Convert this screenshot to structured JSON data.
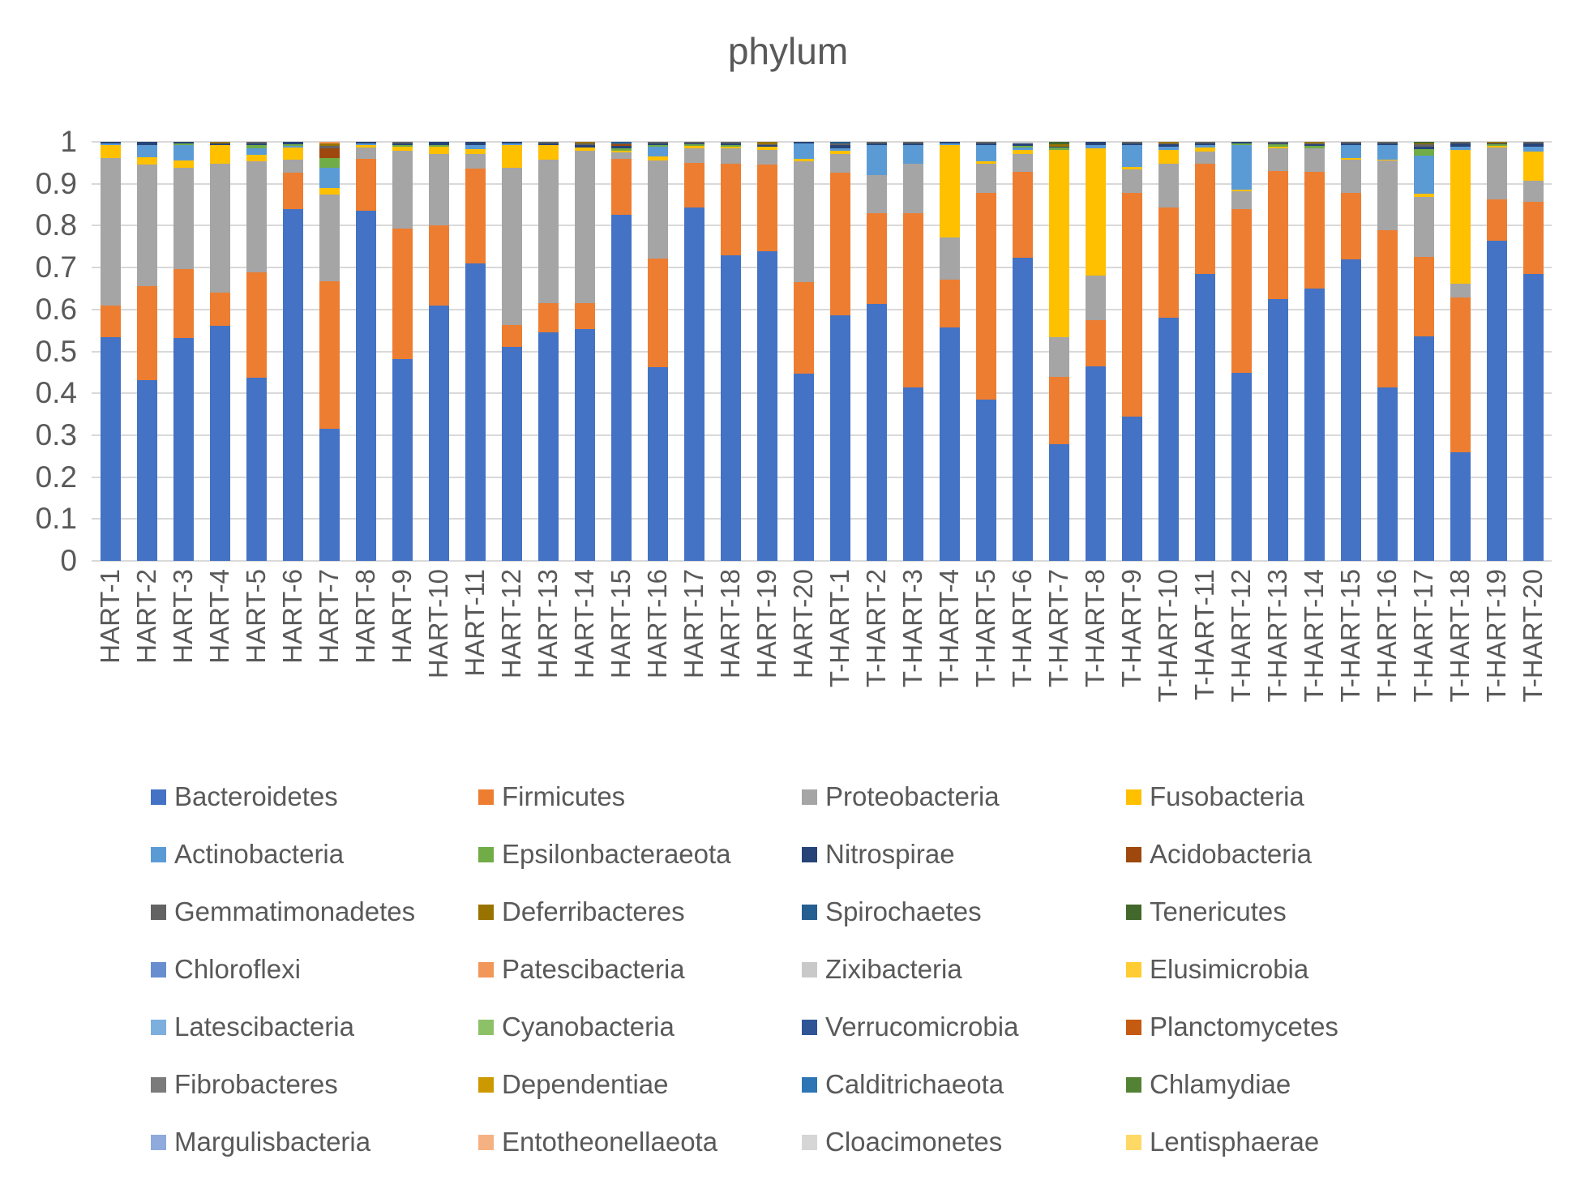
{
  "title": "phylum",
  "y_axis": {
    "ticks": [
      "0",
      "0.1",
      "0.2",
      "0.3",
      "0.4",
      "0.5",
      "0.6",
      "0.7",
      "0.8",
      "0.9",
      "1"
    ],
    "min": 0,
    "max": 1
  },
  "phyla": [
    {
      "name": "Bacteroidetes",
      "color": "#4472C4"
    },
    {
      "name": "Firmicutes",
      "color": "#ED7D31"
    },
    {
      "name": "Proteobacteria",
      "color": "#A5A5A5"
    },
    {
      "name": "Fusobacteria",
      "color": "#FFC000"
    },
    {
      "name": "Actinobacteria",
      "color": "#5B9BD5"
    },
    {
      "name": "Epsilonbacteraeota",
      "color": "#70AD47"
    },
    {
      "name": "Nitrospirae",
      "color": "#264478"
    },
    {
      "name": "Acidobacteria",
      "color": "#9E480E"
    },
    {
      "name": "Gemmatimonadetes",
      "color": "#636363"
    },
    {
      "name": "Deferribacteres",
      "color": "#997300"
    },
    {
      "name": "Spirochaetes",
      "color": "#255E91"
    },
    {
      "name": "Tenericutes",
      "color": "#43682B"
    },
    {
      "name": "Chloroflexi",
      "color": "#698ED0"
    },
    {
      "name": "Patescibacteria",
      "color": "#F1975A"
    },
    {
      "name": "Zixibacteria",
      "color": "#C9C9C9"
    },
    {
      "name": "Elusimicrobia",
      "color": "#FFCD33"
    },
    {
      "name": "Latescibacteria",
      "color": "#7CAFDD"
    },
    {
      "name": "Cyanobacteria",
      "color": "#8CC168"
    },
    {
      "name": "Verrucomicrobia",
      "color": "#2F5597"
    },
    {
      "name": "Planctomycetes",
      "color": "#C55A11"
    },
    {
      "name": "Fibrobacteres",
      "color": "#7B7B7B"
    },
    {
      "name": "Dependentiae",
      "color": "#CC9A00"
    },
    {
      "name": "Calditrichaeota",
      "color": "#2E75B6"
    },
    {
      "name": "Chlamydiae",
      "color": "#548235"
    },
    {
      "name": "Margulisbacteria",
      "color": "#8FAADC"
    },
    {
      "name": "Entotheonellaeota",
      "color": "#F6B183"
    },
    {
      "name": "Cloacimonetes",
      "color": "#D6D6D6"
    },
    {
      "name": "Lentisphaerae",
      "color": "#FFD966"
    }
  ],
  "chart_data": {
    "type": "bar",
    "stacked": true,
    "title": "phylum",
    "xlabel": "",
    "ylabel": "",
    "ylim": [
      0,
      1
    ],
    "gridlines": true,
    "legend_position": "bottom",
    "categories": [
      "HART-1",
      "HART-2",
      "HART-3",
      "HART-4",
      "HART-5",
      "HART-6",
      "HART-7",
      "HART-8",
      "HART-9",
      "HART-10",
      "HART-11",
      "HART-12",
      "HART-13",
      "HART-14",
      "HART-15",
      "HART-16",
      "HART-17",
      "HART-18",
      "HART-19",
      "HART-20",
      "T-HART-1",
      "T-HART-2",
      "T-HART-3",
      "T-HART-4",
      "T-HART-5",
      "T-HART-6",
      "T-HART-7",
      "T-HART-8",
      "T-HART-9",
      "T-HART-10",
      "T-HART-11",
      "T-HART-12",
      "T-HART-13",
      "T-HART-14",
      "T-HART-15",
      "T-HART-16",
      "T-HART-17",
      "T-HART-18",
      "T-HART-19",
      "T-HART-20"
    ],
    "bars": [
      {
        "label": "HART-1",
        "segments": {
          "Bacteroidetes": 0.533,
          "Firmicutes": 0.077,
          "Proteobacteria": 0.351,
          "Fusobacteria": 0.031,
          "Actinobacteria": 0.005,
          "Nitrospirae": 0.003
        }
      },
      {
        "label": "HART-2",
        "segments": {
          "Bacteroidetes": 0.431,
          "Firmicutes": 0.224,
          "Proteobacteria": 0.29,
          "Fusobacteria": 0.019,
          "Actinobacteria": 0.029,
          "Nitrospirae": 0.007
        }
      },
      {
        "label": "HART-3",
        "segments": {
          "Bacteroidetes": 0.532,
          "Firmicutes": 0.164,
          "Proteobacteria": 0.243,
          "Fusobacteria": 0.016,
          "Actinobacteria": 0.038,
          "Epsilonbacteraeota": 0.004,
          "Nitrospirae": 0.003
        }
      },
      {
        "label": "HART-4",
        "segments": {
          "Bacteroidetes": 0.56,
          "Firmicutes": 0.081,
          "Proteobacteria": 0.307,
          "Fusobacteria": 0.045,
          "Deferribacteres": 0.004,
          "Nitrospirae": 0.003
        }
      },
      {
        "label": "HART-5",
        "segments": {
          "Bacteroidetes": 0.437,
          "Firmicutes": 0.252,
          "Proteobacteria": 0.264,
          "Fusobacteria": 0.016,
          "Actinobacteria": 0.016,
          "Epsilonbacteraeota": 0.007,
          "Nitrospirae": 0.005,
          "Gemmatimonadetes": 0.003
        }
      },
      {
        "label": "HART-6",
        "segments": {
          "Bacteroidetes": 0.84,
          "Firmicutes": 0.086,
          "Proteobacteria": 0.031,
          "Fusobacteria": 0.03,
          "Actinobacteria": 0.004,
          "Epsilonbacteraeota": 0.004,
          "Nitrospirae": 0.005
        }
      },
      {
        "label": "HART-7",
        "segments": {
          "Bacteroidetes": 0.315,
          "Firmicutes": 0.353,
          "Proteobacteria": 0.206,
          "Fusobacteria": 0.016,
          "Actinobacteria": 0.048,
          "Epsilonbacteraeota": 0.023,
          "Acidobacteria": 0.024,
          "Gemmatimonadetes": 0.006,
          "Deferribacteres": 0.005,
          "Patescibacteria": 0.004
        }
      },
      {
        "label": "HART-8",
        "segments": {
          "Bacteroidetes": 0.835,
          "Firmicutes": 0.124,
          "Proteobacteria": 0.028,
          "Fusobacteria": 0.006,
          "Actinobacteria": 0.004,
          "Nitrospirae": 0.003
        }
      },
      {
        "label": "HART-9",
        "segments": {
          "Bacteroidetes": 0.481,
          "Firmicutes": 0.313,
          "Proteobacteria": 0.184,
          "Fusobacteria": 0.01,
          "Epsilonbacteraeota": 0.005,
          "Nitrospirae": 0.004,
          "Gemmatimonadetes": 0.003
        }
      },
      {
        "label": "HART-10",
        "segments": {
          "Bacteroidetes": 0.61,
          "Firmicutes": 0.191,
          "Proteobacteria": 0.17,
          "Fusobacteria": 0.018,
          "Epsilonbacteraeota": 0.004,
          "Nitrospirae": 0.007
        }
      },
      {
        "label": "HART-11",
        "segments": {
          "Bacteroidetes": 0.71,
          "Firmicutes": 0.226,
          "Proteobacteria": 0.036,
          "Fusobacteria": 0.01,
          "Actinobacteria": 0.011,
          "Nitrospirae": 0.007
        }
      },
      {
        "label": "HART-12",
        "segments": {
          "Bacteroidetes": 0.51,
          "Firmicutes": 0.052,
          "Proteobacteria": 0.377,
          "Fusobacteria": 0.053,
          "Actinobacteria": 0.004,
          "Nitrospirae": 0.004
        }
      },
      {
        "label": "HART-13",
        "segments": {
          "Bacteroidetes": 0.545,
          "Firmicutes": 0.071,
          "Proteobacteria": 0.341,
          "Fusobacteria": 0.035,
          "Nitrospirae": 0.004,
          "Gemmatimonadetes": 0.004
        }
      },
      {
        "label": "HART-14",
        "segments": {
          "Bacteroidetes": 0.553,
          "Firmicutes": 0.063,
          "Proteobacteria": 0.363,
          "Fusobacteria": 0.008,
          "Nitrospirae": 0.006,
          "Gemmatimonadetes": 0.004,
          "Deferribacteres": 0.003
        }
      },
      {
        "label": "HART-15",
        "segments": {
          "Bacteroidetes": 0.826,
          "Firmicutes": 0.134,
          "Proteobacteria": 0.015,
          "Fusobacteria": 0.004,
          "Epsilonbacteraeota": 0.006,
          "Nitrospirae": 0.005,
          "Acidobacteria": 0.004,
          "Gemmatimonadetes": 0.003,
          "Spirochaetes": 0.003
        }
      },
      {
        "label": "HART-16",
        "segments": {
          "Bacteroidetes": 0.463,
          "Firmicutes": 0.258,
          "Proteobacteria": 0.234,
          "Fusobacteria": 0.01,
          "Actinobacteria": 0.024,
          "Epsilonbacteraeota": 0.004,
          "Nitrospirae": 0.004,
          "Gemmatimonadetes": 0.003
        }
      },
      {
        "label": "HART-17",
        "segments": {
          "Bacteroidetes": 0.843,
          "Firmicutes": 0.107,
          "Proteobacteria": 0.035,
          "Fusobacteria": 0.005,
          "Epsilonbacteraeota": 0.004,
          "Nitrospirae": 0.003,
          "Gemmatimonadetes": 0.003
        }
      },
      {
        "label": "HART-18",
        "segments": {
          "Bacteroidetes": 0.729,
          "Firmicutes": 0.219,
          "Proteobacteria": 0.037,
          "Fusobacteria": 0.004,
          "Epsilonbacteraeota": 0.004,
          "Nitrospirae": 0.004,
          "Gemmatimonadetes": 0.003
        }
      },
      {
        "label": "HART-19",
        "segments": {
          "Bacteroidetes": 0.738,
          "Firmicutes": 0.207,
          "Proteobacteria": 0.036,
          "Fusobacteria": 0.008,
          "Deferribacteres": 0.005,
          "Nitrospirae": 0.003,
          "Gemmatimonadetes": 0.003
        }
      },
      {
        "label": "HART-20",
        "segments": {
          "Bacteroidetes": 0.446,
          "Firmicutes": 0.219,
          "Proteobacteria": 0.288,
          "Fusobacteria": 0.006,
          "Actinobacteria": 0.037,
          "Nitrospirae": 0.004
        }
      },
      {
        "label": "T-HART-1",
        "segments": {
          "Bacteroidetes": 0.587,
          "Firmicutes": 0.339,
          "Proteobacteria": 0.046,
          "Fusobacteria": 0.006,
          "Actinobacteria": 0.007,
          "Nitrospirae": 0.008,
          "Gemmatimonadetes": 0.004,
          "Spirochaetes": 0.003
        }
      },
      {
        "label": "T-HART-2",
        "segments": {
          "Bacteroidetes": 0.613,
          "Firmicutes": 0.216,
          "Proteobacteria": 0.092,
          "Actinobacteria": 0.071,
          "Nitrospirae": 0.005,
          "Gemmatimonadetes": 0.003
        }
      },
      {
        "label": "T-HART-3",
        "segments": {
          "Bacteroidetes": 0.413,
          "Firmicutes": 0.416,
          "Proteobacteria": 0.119,
          "Actinobacteria": 0.045,
          "Nitrospirae": 0.004,
          "Gemmatimonadetes": 0.003
        }
      },
      {
        "label": "T-HART-4",
        "segments": {
          "Bacteroidetes": 0.558,
          "Firmicutes": 0.113,
          "Proteobacteria": 0.1,
          "Fusobacteria": 0.221,
          "Actinobacteria": 0.004,
          "Nitrospirae": 0.004
        }
      },
      {
        "label": "T-HART-5",
        "segments": {
          "Bacteroidetes": 0.384,
          "Firmicutes": 0.494,
          "Proteobacteria": 0.07,
          "Fusobacteria": 0.005,
          "Actinobacteria": 0.039,
          "Nitrospirae": 0.005,
          "Gemmatimonadetes": 0.003
        }
      },
      {
        "label": "T-HART-6",
        "segments": {
          "Bacteroidetes": 0.723,
          "Firmicutes": 0.206,
          "Proteobacteria": 0.043,
          "Fusobacteria": 0.008,
          "Actinobacteria": 0.006,
          "Epsilonbacteraeota": 0.005,
          "Nitrospirae": 0.005,
          "Zixibacteria": 0.004
        }
      },
      {
        "label": "T-HART-7",
        "segments": {
          "Bacteroidetes": 0.278,
          "Firmicutes": 0.161,
          "Proteobacteria": 0.094,
          "Fusobacteria": 0.448,
          "Epsilonbacteraeota": 0.005,
          "Deferribacteres": 0.006,
          "Tenericutes": 0.005,
          "Nitrospirae": 0.003
        }
      },
      {
        "label": "T-HART-8",
        "segments": {
          "Bacteroidetes": 0.465,
          "Firmicutes": 0.109,
          "Proteobacteria": 0.107,
          "Fusobacteria": 0.304,
          "Actinobacteria": 0.008,
          "Nitrospirae": 0.007
        }
      },
      {
        "label": "T-HART-9",
        "segments": {
          "Bacteroidetes": 0.344,
          "Firmicutes": 0.535,
          "Proteobacteria": 0.055,
          "Fusobacteria": 0.006,
          "Actinobacteria": 0.052,
          "Nitrospirae": 0.005,
          "Gemmatimonadetes": 0.003
        }
      },
      {
        "label": "T-HART-10",
        "segments": {
          "Bacteroidetes": 0.581,
          "Firmicutes": 0.262,
          "Proteobacteria": 0.105,
          "Fusobacteria": 0.033,
          "Actinobacteria": 0.007,
          "Nitrospirae": 0.006,
          "Deferribacteres": 0.003,
          "Gemmatimonadetes": 0.003
        }
      },
      {
        "label": "T-HART-11",
        "segments": {
          "Bacteroidetes": 0.684,
          "Firmicutes": 0.263,
          "Proteobacteria": 0.03,
          "Fusobacteria": 0.01,
          "Actinobacteria": 0.005,
          "Nitrospirae": 0.005,
          "Gemmatimonadetes": 0.003
        }
      },
      {
        "label": "T-HART-12",
        "segments": {
          "Bacteroidetes": 0.449,
          "Firmicutes": 0.39,
          "Proteobacteria": 0.043,
          "Fusobacteria": 0.004,
          "Actinobacteria": 0.106,
          "Epsilonbacteraeota": 0.004,
          "Nitrospirae": 0.004
        }
      },
      {
        "label": "T-HART-13",
        "segments": {
          "Bacteroidetes": 0.624,
          "Firmicutes": 0.307,
          "Proteobacteria": 0.054,
          "Fusobacteria": 0.004,
          "Epsilonbacteraeota": 0.005,
          "Nitrospirae": 0.003,
          "Gemmatimonadetes": 0.003
        }
      },
      {
        "label": "T-HART-14",
        "segments": {
          "Bacteroidetes": 0.649,
          "Firmicutes": 0.28,
          "Proteobacteria": 0.055,
          "Epsilonbacteraeota": 0.006,
          "Nitrospirae": 0.004,
          "Gemmatimonadetes": 0.003,
          "Deferribacteres": 0.003
        }
      },
      {
        "label": "T-HART-15",
        "segments": {
          "Bacteroidetes": 0.72,
          "Firmicutes": 0.159,
          "Proteobacteria": 0.079,
          "Fusobacteria": 0.004,
          "Actinobacteria": 0.03,
          "Nitrospirae": 0.005,
          "Gemmatimonadetes": 0.003
        }
      },
      {
        "label": "T-HART-16",
        "segments": {
          "Bacteroidetes": 0.413,
          "Firmicutes": 0.376,
          "Proteobacteria": 0.166,
          "Fusobacteria": 0.003,
          "Actinobacteria": 0.034,
          "Nitrospirae": 0.005,
          "Gemmatimonadetes": 0.003
        }
      },
      {
        "label": "T-HART-17",
        "segments": {
          "Bacteroidetes": 0.536,
          "Firmicutes": 0.19,
          "Proteobacteria": 0.142,
          "Fusobacteria": 0.008,
          "Actinobacteria": 0.092,
          "Epsilonbacteraeota": 0.014,
          "Nitrospirae": 0.006,
          "Gemmatimonadetes": 0.006,
          "Tenericutes": 0.003,
          "Deferribacteres": 0.003
        }
      },
      {
        "label": "T-HART-18",
        "segments": {
          "Bacteroidetes": 0.259,
          "Firmicutes": 0.369,
          "Proteobacteria": 0.034,
          "Fusobacteria": 0.319,
          "Actinobacteria": 0.007,
          "Nitrospirae": 0.008,
          "Gemmatimonadetes": 0.004
        }
      },
      {
        "label": "T-HART-19",
        "segments": {
          "Bacteroidetes": 0.765,
          "Firmicutes": 0.098,
          "Proteobacteria": 0.124,
          "Fusobacteria": 0.004,
          "Epsilonbacteraeota": 0.003,
          "Deferribacteres": 0.003,
          "Nitrospirae": 0.003
        }
      },
      {
        "label": "T-HART-20",
        "segments": {
          "Bacteroidetes": 0.684,
          "Firmicutes": 0.172,
          "Proteobacteria": 0.052,
          "Fusobacteria": 0.069,
          "Actinobacteria": 0.011,
          "Nitrospirae": 0.008,
          "Gemmatimonadetes": 0.004
        }
      }
    ]
  }
}
